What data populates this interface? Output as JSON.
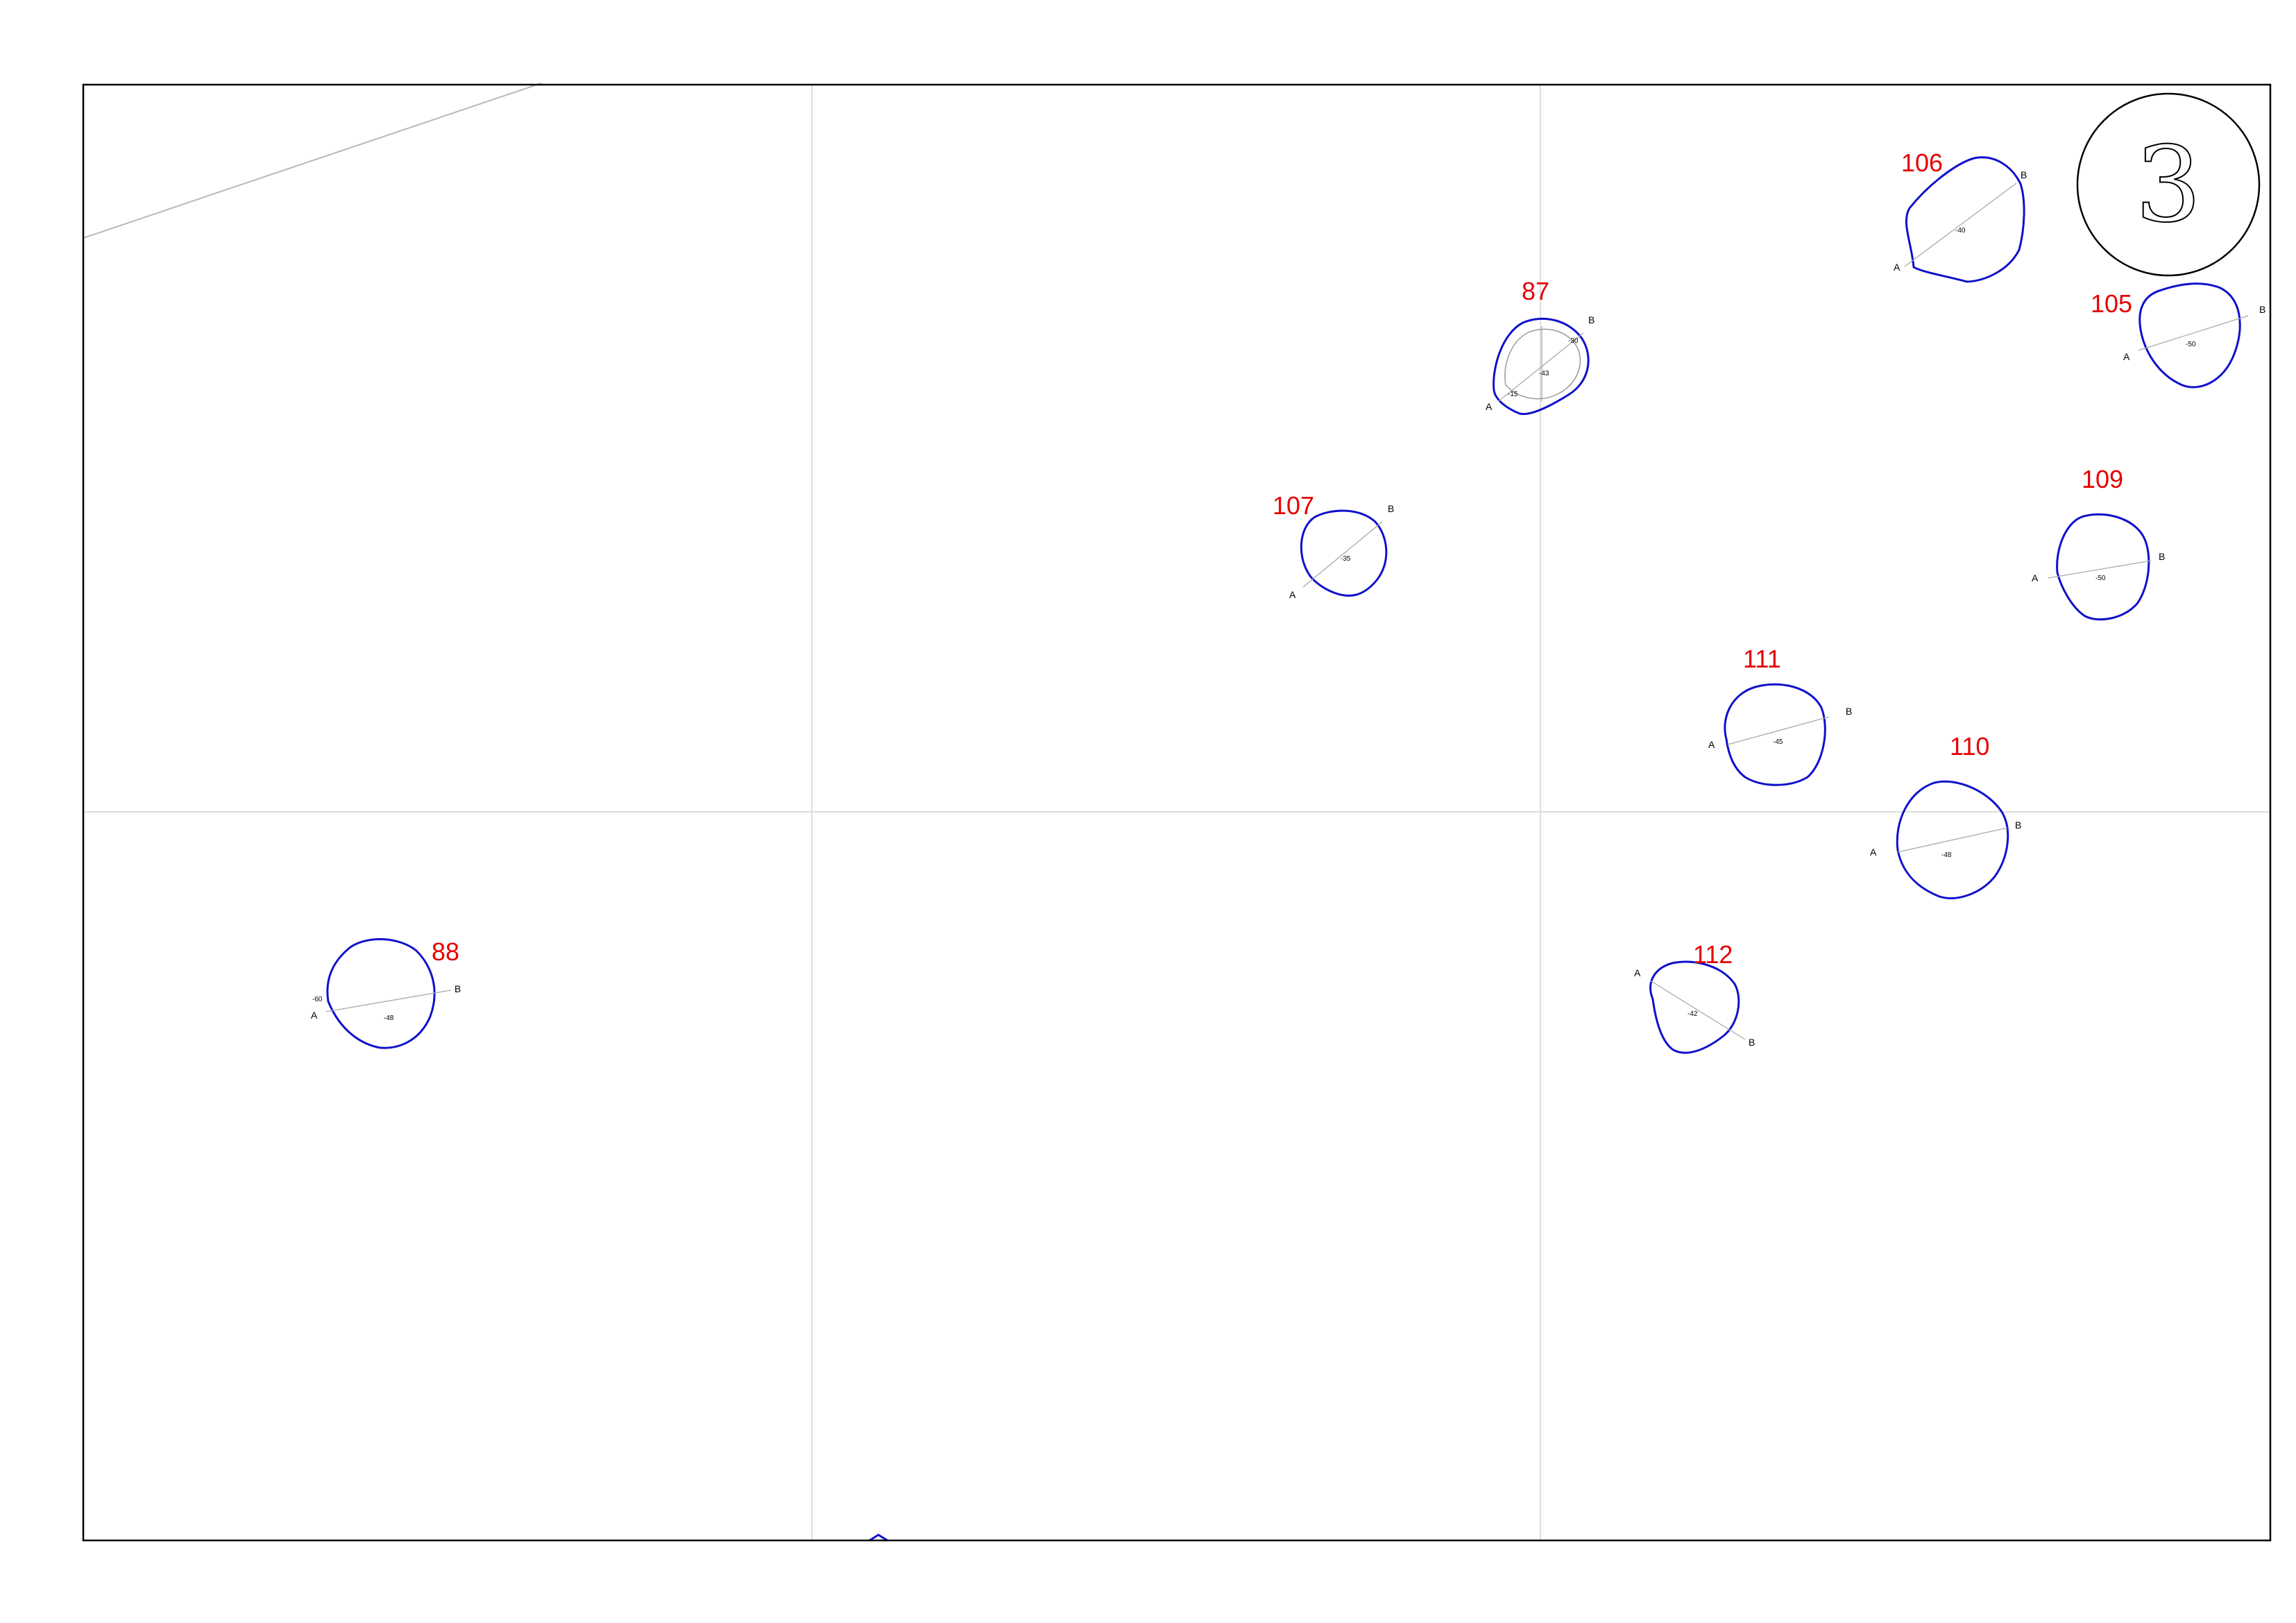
{
  "sheet": {
    "number": "3"
  },
  "features": [
    {
      "id": "feature-87",
      "label": "87",
      "end_a": "A",
      "end_b": "B",
      "depths": [
        "-30",
        "-43",
        "-15"
      ]
    },
    {
      "id": "feature-88",
      "label": "88",
      "end_a": "A",
      "end_b": "B",
      "depths": [
        "-60",
        "-48"
      ]
    },
    {
      "id": "feature-105",
      "label": "105",
      "end_a": "A",
      "end_b": "B",
      "depths": [
        "-50"
      ]
    },
    {
      "id": "feature-106",
      "label": "106",
      "end_a": "A",
      "end_b": "B",
      "depths": [
        "-40"
      ]
    },
    {
      "id": "feature-107",
      "label": "107",
      "end_a": "A",
      "end_b": "B",
      "depths": [
        "-35"
      ]
    },
    {
      "id": "feature-109",
      "label": "109",
      "end_a": "A",
      "end_b": "B",
      "depths": [
        "-50"
      ]
    },
    {
      "id": "feature-110",
      "label": "110",
      "end_a": "A",
      "end_b": "B",
      "depths": [
        "-48"
      ]
    },
    {
      "id": "feature-111",
      "label": "111",
      "end_a": "A",
      "end_b": "B",
      "depths": [
        "-45"
      ]
    },
    {
      "id": "feature-112",
      "label": "112",
      "end_a": "A",
      "end_b": "B",
      "depths": [
        "-42"
      ]
    }
  ],
  "colors": {
    "feature_outline": "#1010cc",
    "feature_label": "#e60000",
    "section_line": "#aaaaaa",
    "grid": "#dddddd",
    "frame": "#000000"
  }
}
